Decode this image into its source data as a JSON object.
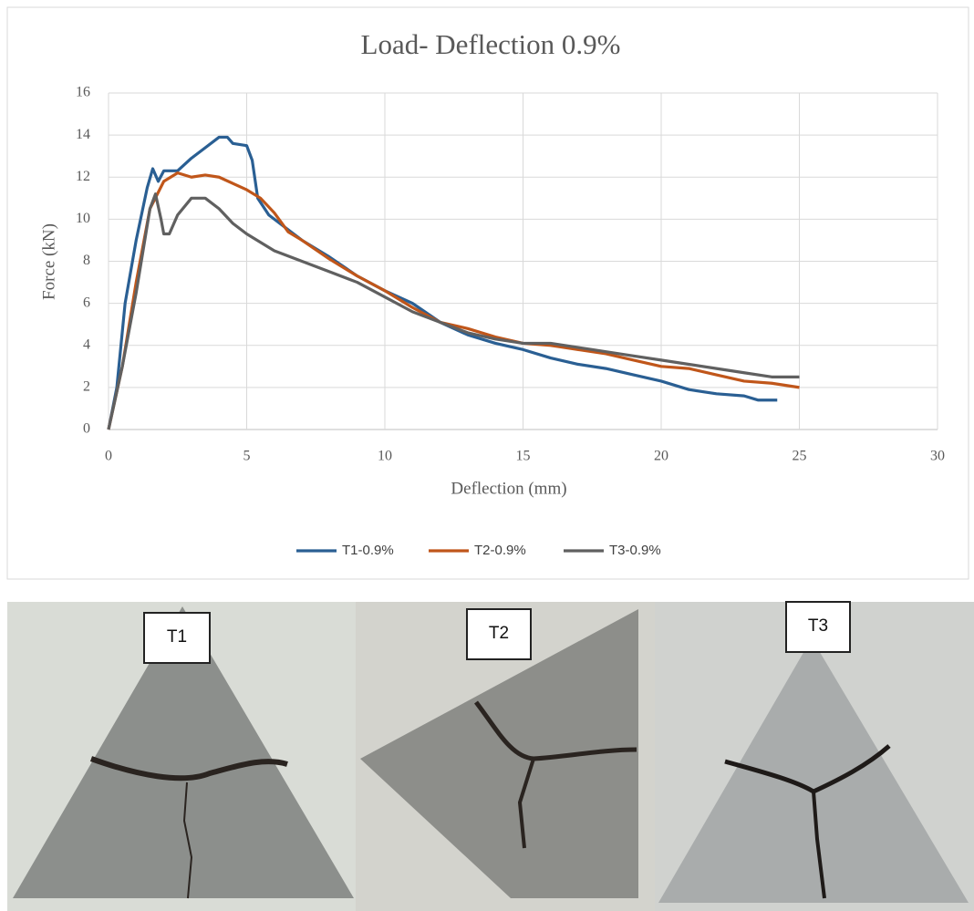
{
  "chart_data": {
    "type": "line",
    "title": "Load- Deflection 0.9%",
    "x_label": "Deflection (mm)",
    "y_label": "Force (kN)",
    "xlim": [
      0,
      30
    ],
    "xticks": [
      0,
      5,
      10,
      15,
      20,
      25,
      30
    ],
    "ylim": [
      0,
      16
    ],
    "yticks": [
      0,
      2,
      4,
      6,
      8,
      10,
      12,
      14,
      16
    ],
    "grid": true,
    "legend": "bottom",
    "series": [
      {
        "name": "T1-0.9%",
        "color": "#2a5f93",
        "x": [
          0,
          0.3,
          0.6,
          1.0,
          1.4,
          1.6,
          1.8,
          2.0,
          2.5,
          3.0,
          3.5,
          4.0,
          4.3,
          4.5,
          5.0,
          5.2,
          5.4,
          5.8,
          7,
          8,
          9,
          10,
          11,
          12,
          13,
          14,
          15,
          16,
          17,
          18,
          19,
          20,
          21,
          22,
          23,
          23.5,
          24.2
        ],
        "values": [
          0,
          2,
          6,
          9,
          11.5,
          12.4,
          11.8,
          12.3,
          12.3,
          12.9,
          13.4,
          13.9,
          13.9,
          13.6,
          13.5,
          12.8,
          11,
          10.2,
          9,
          8.2,
          7.3,
          6.6,
          6,
          5.1,
          4.5,
          4.1,
          3.8,
          3.4,
          3.1,
          2.9,
          2.6,
          2.3,
          1.9,
          1.7,
          1.6,
          1.4,
          1.4
        ]
      },
      {
        "name": "T2-0.9%",
        "color": "#c0561a",
        "x": [
          0,
          0.5,
          1,
          1.5,
          2,
          2.5,
          3,
          3.5,
          4,
          4.5,
          5,
          5.5,
          6,
          6.5,
          7,
          8,
          9,
          10,
          11,
          12,
          13,
          14,
          15,
          16,
          17,
          18,
          19,
          20,
          21,
          22,
          23,
          24,
          25
        ],
        "values": [
          0,
          3,
          7,
          10.5,
          11.8,
          12.2,
          12.0,
          12.1,
          12.0,
          11.7,
          11.4,
          11.0,
          10.3,
          9.4,
          9.0,
          8.1,
          7.3,
          6.6,
          5.8,
          5.1,
          4.8,
          4.4,
          4.1,
          4.0,
          3.8,
          3.6,
          3.3,
          3.0,
          2.9,
          2.6,
          2.3,
          2.2,
          2.0
        ]
      },
      {
        "name": "T3-0.9%",
        "color": "#606060",
        "x": [
          0,
          0.5,
          1,
          1.5,
          1.7,
          1.9,
          2.0,
          2.2,
          2.5,
          3,
          3.5,
          4,
          4.5,
          5,
          6,
          7,
          8,
          9,
          10,
          11,
          12,
          13,
          14,
          15,
          16,
          17,
          18,
          19,
          20,
          21,
          22,
          23,
          24,
          25
        ],
        "values": [
          0,
          3,
          6.5,
          10.5,
          11.2,
          10,
          9.3,
          9.3,
          10.2,
          11.0,
          11.0,
          10.5,
          9.8,
          9.3,
          8.5,
          8.0,
          7.5,
          7.0,
          6.3,
          5.6,
          5.1,
          4.6,
          4.3,
          4.1,
          4.1,
          3.9,
          3.7,
          3.5,
          3.3,
          3.1,
          2.9,
          2.7,
          2.5,
          2.5
        ]
      }
    ]
  },
  "photos": [
    {
      "label": "T1"
    },
    {
      "label": "T2"
    },
    {
      "label": "T3"
    }
  ]
}
